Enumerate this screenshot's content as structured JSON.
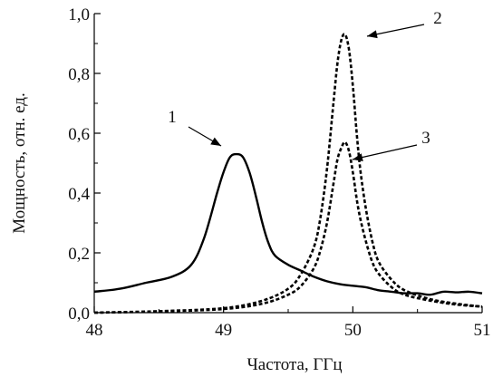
{
  "chart_data": {
    "type": "line",
    "title": "",
    "xlabel": "Частота, ГГц",
    "ylabel": "Мощность, отн. ед.",
    "xlim": [
      48,
      51
    ],
    "ylim": [
      0,
      1
    ],
    "x_ticks": [
      "48",
      "49",
      "50",
      "51"
    ],
    "y_ticks": [
      "0,0",
      "0,2",
      "0,4",
      "0,6",
      "0,8",
      "1,0"
    ],
    "grid": false,
    "legend": "none",
    "series": [
      {
        "label": "1",
        "style": "solid",
        "color": "#000000",
        "x": [
          48.0,
          48.2,
          48.4,
          48.6,
          48.75,
          48.85,
          48.95,
          49.0,
          49.05,
          49.1,
          49.15,
          49.2,
          49.25,
          49.3,
          49.35,
          49.4,
          49.5,
          49.6,
          49.7,
          49.8,
          49.9,
          50.0,
          50.1,
          50.2,
          50.3,
          50.4,
          50.5,
          50.6,
          50.7,
          50.8,
          50.9,
          51.0
        ],
        "y": [
          0.07,
          0.08,
          0.1,
          0.12,
          0.16,
          0.25,
          0.4,
          0.47,
          0.52,
          0.53,
          0.52,
          0.47,
          0.39,
          0.3,
          0.23,
          0.19,
          0.16,
          0.14,
          0.12,
          0.105,
          0.095,
          0.09,
          0.085,
          0.075,
          0.07,
          0.065,
          0.065,
          0.06,
          0.07,
          0.068,
          0.07,
          0.065
        ]
      },
      {
        "label": "2",
        "style": "dashed",
        "color": "#000000",
        "x": [
          48.0,
          48.5,
          49.0,
          49.3,
          49.5,
          49.6,
          49.7,
          49.75,
          49.8,
          49.85,
          49.88,
          49.91,
          49.94,
          49.97,
          50.0,
          50.03,
          50.06,
          50.1,
          50.15,
          50.2,
          50.3,
          50.4,
          50.6,
          50.8,
          51.0
        ],
        "y": [
          0.0,
          0.005,
          0.015,
          0.04,
          0.08,
          0.13,
          0.22,
          0.32,
          0.48,
          0.7,
          0.83,
          0.91,
          0.93,
          0.88,
          0.76,
          0.6,
          0.47,
          0.35,
          0.24,
          0.17,
          0.11,
          0.075,
          0.045,
          0.03,
          0.02
        ]
      },
      {
        "label": "3",
        "style": "dashed",
        "color": "#000000",
        "x": [
          48.0,
          48.5,
          49.0,
          49.3,
          49.5,
          49.6,
          49.7,
          49.75,
          49.8,
          49.85,
          49.88,
          49.91,
          49.94,
          49.97,
          50.0,
          50.03,
          50.06,
          50.1,
          50.15,
          50.2,
          50.3,
          50.4,
          50.6,
          50.8,
          51.0
        ],
        "y": [
          0.0,
          0.004,
          0.012,
          0.03,
          0.06,
          0.09,
          0.15,
          0.21,
          0.3,
          0.43,
          0.51,
          0.55,
          0.57,
          0.54,
          0.47,
          0.38,
          0.31,
          0.24,
          0.17,
          0.13,
          0.085,
          0.06,
          0.04,
          0.027,
          0.02
        ]
      }
    ],
    "annotations": [
      {
        "text": "1",
        "target_x": 49.0,
        "target_y": 0.56
      },
      {
        "text": "2",
        "target_x": 49.95,
        "target_y": 0.93
      },
      {
        "text": "3",
        "target_x": 49.98,
        "target_y": 0.53
      }
    ]
  }
}
